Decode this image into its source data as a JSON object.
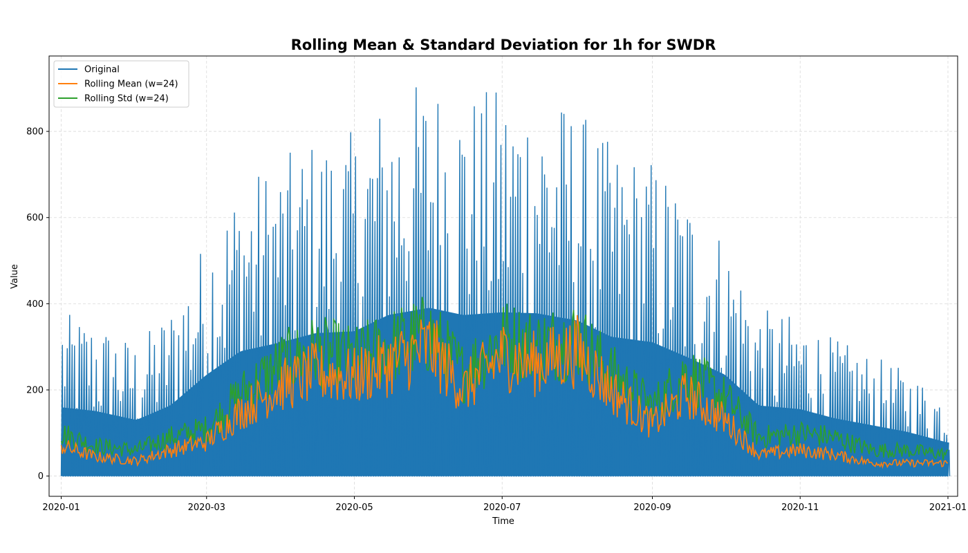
{
  "chart_data": {
    "type": "line",
    "title": "Rolling Mean & Standard Deviation for 1h for SWDR",
    "xlabel": "Time",
    "ylabel": "Value",
    "x_axis": {
      "range": [
        "2019-12-27",
        "2021-01-05"
      ],
      "ticks": [
        "2020-01-01",
        "2020-03-01",
        "2020-05-01",
        "2020-07-01",
        "2020-09-01",
        "2020-11-01",
        "2021-01-01"
      ],
      "tick_labels": [
        "2020-01",
        "2020-03",
        "2020-05",
        "2020-07",
        "2020-09",
        "2020-11",
        "2021-01"
      ]
    },
    "y_axis": {
      "range": [
        -47,
        975
      ],
      "ticks": [
        0,
        200,
        400,
        600,
        800
      ],
      "tick_labels": [
        "0",
        "200",
        "400",
        "600",
        "800"
      ]
    },
    "grid": true,
    "legend_position": "top-left",
    "series": [
      {
        "name": "Original",
        "color": "#1f77b4",
        "description": "hourly values; daily peaks shown",
        "x": [
          "2020-01-01",
          "2020-01-15",
          "2020-02-01",
          "2020-02-15",
          "2020-03-01",
          "2020-03-15",
          "2020-04-01",
          "2020-04-15",
          "2020-05-01",
          "2020-05-15",
          "2020-06-01",
          "2020-06-15",
          "2020-07-01",
          "2020-07-15",
          "2020-08-01",
          "2020-08-15",
          "2020-09-01",
          "2020-09-15",
          "2020-10-01",
          "2020-10-15",
          "2020-11-01",
          "2020-11-15",
          "2020-12-01",
          "2020-12-15",
          "2021-01-01"
        ],
        "values": [
          380,
          360,
          310,
          390,
          560,
          690,
          740,
          790,
          800,
          890,
          930,
          890,
          905,
          900,
          860,
          770,
          740,
          660,
          560,
          390,
          370,
          320,
          280,
          245,
          185
        ]
      },
      {
        "name": "Rolling Mean (w=24)",
        "color": "#ff7f0e",
        "x": [
          "2020-01-01",
          "2020-01-15",
          "2020-02-01",
          "2020-02-15",
          "2020-03-01",
          "2020-03-15",
          "2020-04-01",
          "2020-04-15",
          "2020-05-01",
          "2020-05-15",
          "2020-06-01",
          "2020-06-15",
          "2020-07-01",
          "2020-07-15",
          "2020-08-01",
          "2020-08-15",
          "2020-09-01",
          "2020-09-15",
          "2020-10-01",
          "2020-10-15",
          "2020-11-01",
          "2020-11-15",
          "2020-12-01",
          "2020-12-15",
          "2021-01-01"
        ],
        "values": [
          70,
          45,
          35,
          60,
          80,
          150,
          210,
          240,
          230,
          260,
          300,
          200,
          280,
          260,
          290,
          200,
          120,
          190,
          130,
          50,
          60,
          50,
          30,
          30,
          30
        ]
      },
      {
        "name": "Rolling Std (w=24)",
        "color": "#2ca02c",
        "x": [
          "2020-01-01",
          "2020-01-15",
          "2020-02-01",
          "2020-02-15",
          "2020-03-01",
          "2020-03-15",
          "2020-04-01",
          "2020-04-15",
          "2020-05-01",
          "2020-05-15",
          "2020-06-01",
          "2020-06-15",
          "2020-07-01",
          "2020-07-15",
          "2020-08-01",
          "2020-08-15",
          "2020-09-01",
          "2020-09-15",
          "2020-10-01",
          "2020-10-15",
          "2020-11-01",
          "2020-11-15",
          "2020-12-01",
          "2020-12-15",
          "2021-01-01"
        ],
        "values": [
          100,
          70,
          60,
          90,
          110,
          190,
          260,
          290,
          270,
          300,
          330,
          240,
          320,
          300,
          320,
          240,
          160,
          240,
          180,
          90,
          100,
          90,
          60,
          60,
          50
        ]
      }
    ]
  }
}
